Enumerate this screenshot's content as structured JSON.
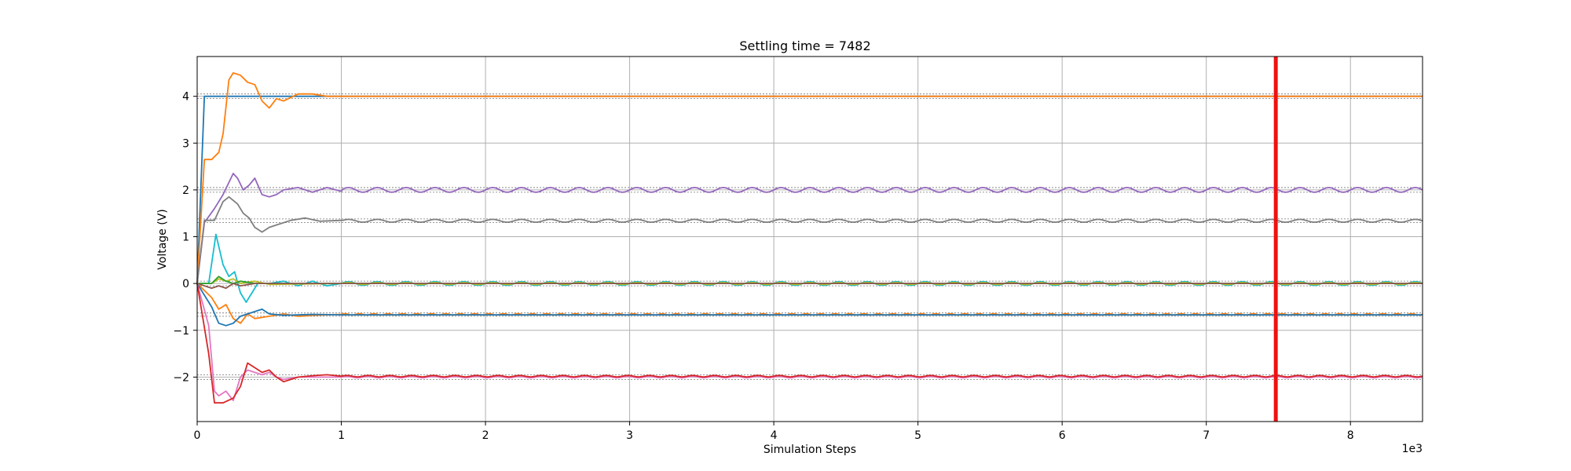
{
  "chart_data": {
    "type": "line",
    "title": "Settling time = 7482",
    "xlabel": "Simulation Steps",
    "ylabel": "Voltage (V)",
    "x_offset_label": "1e3",
    "xlim": [
      0,
      8.5
    ],
    "ylim": [
      -2.95,
      4.85
    ],
    "x_ticks": [
      0,
      1,
      2,
      3,
      4,
      5,
      6,
      7,
      8
    ],
    "y_ticks": [
      -2,
      -1,
      0,
      1,
      2,
      3,
      4
    ],
    "grid": true,
    "legend": "none",
    "settling_marker": {
      "x": 7.482,
      "color": "#ee1111"
    },
    "target_band_lines": [
      4.05,
      3.95,
      2.05,
      1.95,
      1.38,
      1.3,
      0.05,
      -0.05,
      -0.63,
      -0.7,
      -1.95,
      -2.05
    ],
    "series": [
      {
        "color": "#1f77b4",
        "points": [
          [
            0,
            0
          ],
          [
            0.05,
            4
          ],
          [
            1,
            4
          ],
          [
            8.5,
            4
          ]
        ]
      },
      {
        "color": "#ff7f0e",
        "points": [
          [
            0,
            0
          ],
          [
            0.05,
            2.65
          ],
          [
            0.1,
            2.65
          ],
          [
            0.15,
            2.8
          ],
          [
            0.18,
            3.2
          ],
          [
            0.22,
            4.35
          ],
          [
            0.25,
            4.5
          ],
          [
            0.3,
            4.45
          ],
          [
            0.35,
            4.3
          ],
          [
            0.4,
            4.25
          ],
          [
            0.45,
            3.9
          ],
          [
            0.5,
            3.75
          ],
          [
            0.55,
            3.95
          ],
          [
            0.6,
            3.9
          ],
          [
            0.7,
            4.05
          ],
          [
            0.8,
            4.05
          ],
          [
            0.9,
            4.0
          ],
          [
            1.0,
            4.0
          ],
          [
            8.5,
            4.0
          ]
        ]
      },
      {
        "color": "#9467bd",
        "points": [
          [
            0,
            0
          ],
          [
            0.05,
            1.3
          ],
          [
            0.12,
            1.6
          ],
          [
            0.18,
            1.9
          ],
          [
            0.25,
            2.35
          ],
          [
            0.28,
            2.25
          ],
          [
            0.32,
            2.0
          ],
          [
            0.36,
            2.1
          ],
          [
            0.4,
            2.25
          ],
          [
            0.45,
            1.9
          ],
          [
            0.5,
            1.85
          ],
          [
            0.55,
            1.9
          ],
          [
            0.6,
            2.0
          ],
          [
            0.7,
            2.05
          ],
          [
            0.8,
            1.95
          ],
          [
            0.9,
            2.05
          ],
          [
            1.0,
            1.97
          ]
        ],
        "osc": {
          "x0": 1.0,
          "x1": 8.5,
          "center": 2.0,
          "amp": 0.05,
          "period": 0.2
        }
      },
      {
        "color": "#7f7f7f",
        "points": [
          [
            0,
            0
          ],
          [
            0.05,
            1.35
          ],
          [
            0.12,
            1.35
          ],
          [
            0.18,
            1.75
          ],
          [
            0.22,
            1.85
          ],
          [
            0.28,
            1.7
          ],
          [
            0.32,
            1.5
          ],
          [
            0.36,
            1.4
          ],
          [
            0.4,
            1.2
          ],
          [
            0.45,
            1.1
          ],
          [
            0.5,
            1.2
          ],
          [
            0.55,
            1.25
          ],
          [
            0.65,
            1.35
          ],
          [
            0.75,
            1.4
          ],
          [
            0.85,
            1.33
          ],
          [
            1.0,
            1.35
          ]
        ],
        "osc": {
          "x0": 1.0,
          "x1": 8.5,
          "center": 1.34,
          "amp": 0.03,
          "period": 0.2
        }
      },
      {
        "color": "#17becf",
        "points": [
          [
            0,
            0
          ],
          [
            0.08,
            0.0
          ],
          [
            0.13,
            1.05
          ],
          [
            0.18,
            0.4
          ],
          [
            0.22,
            0.15
          ],
          [
            0.26,
            0.25
          ],
          [
            0.3,
            -0.2
          ],
          [
            0.34,
            -0.4
          ],
          [
            0.38,
            -0.2
          ],
          [
            0.42,
            0.0
          ],
          [
            0.5,
            0.0
          ],
          [
            0.6,
            0.05
          ],
          [
            0.7,
            -0.05
          ],
          [
            0.8,
            0.05
          ],
          [
            0.9,
            -0.05
          ],
          [
            1.0,
            0.0
          ]
        ],
        "osc": {
          "x0": 1.0,
          "x1": 8.5,
          "center": 0.0,
          "amp": 0.04,
          "period": 0.2
        }
      },
      {
        "color": "#bcbd22",
        "points": [
          [
            0,
            0
          ],
          [
            0.1,
            0.0
          ],
          [
            0.15,
            0.1
          ],
          [
            0.2,
            0.05
          ],
          [
            0.25,
            0.1
          ],
          [
            0.3,
            0.0
          ],
          [
            0.4,
            0.05
          ],
          [
            0.5,
            -0.02
          ],
          [
            1.0,
            0.0
          ]
        ],
        "osc": {
          "x0": 1.0,
          "x1": 8.5,
          "center": 0.0,
          "amp": 0.02,
          "period": 0.2
        }
      },
      {
        "color": "#2ca02c",
        "points": [
          [
            0,
            0
          ],
          [
            0.1,
            0.0
          ],
          [
            0.15,
            0.15
          ],
          [
            0.2,
            0.05
          ],
          [
            0.25,
            0.0
          ],
          [
            0.3,
            0.05
          ],
          [
            0.4,
            0.0
          ],
          [
            1.0,
            0.0
          ],
          [
            8.5,
            0.0
          ]
        ]
      },
      {
        "color": "#8c564b",
        "points": [
          [
            0,
            0
          ],
          [
            0.1,
            -0.1
          ],
          [
            0.15,
            -0.05
          ],
          [
            0.2,
            -0.1
          ],
          [
            0.25,
            0.0
          ],
          [
            0.3,
            -0.05
          ],
          [
            0.4,
            0.0
          ],
          [
            1.0,
            0.0
          ],
          [
            8.5,
            0.0
          ]
        ]
      },
      {
        "color": "#ff7f0e",
        "points": [
          [
            0,
            0
          ],
          [
            0.1,
            -0.3
          ],
          [
            0.15,
            -0.55
          ],
          [
            0.2,
            -0.45
          ],
          [
            0.25,
            -0.75
          ],
          [
            0.3,
            -0.85
          ],
          [
            0.35,
            -0.65
          ],
          [
            0.4,
            -0.75
          ],
          [
            0.5,
            -0.7
          ],
          [
            0.6,
            -0.65
          ],
          [
            0.7,
            -0.7
          ],
          [
            0.8,
            -0.68
          ],
          [
            1.0,
            -0.66
          ]
        ],
        "osc": {
          "x0": 1.0,
          "x1": 8.5,
          "center": -0.66,
          "amp": 0.015,
          "period": 0.1
        }
      },
      {
        "color": "#1f77b4",
        "points": [
          [
            0,
            0
          ],
          [
            0.1,
            -0.5
          ],
          [
            0.15,
            -0.85
          ],
          [
            0.2,
            -0.9
          ],
          [
            0.25,
            -0.85
          ],
          [
            0.3,
            -0.7
          ],
          [
            0.35,
            -0.65
          ],
          [
            0.4,
            -0.6
          ],
          [
            0.45,
            -0.55
          ],
          [
            0.5,
            -0.65
          ],
          [
            0.6,
            -0.68
          ],
          [
            0.8,
            -0.66
          ],
          [
            1.0,
            -0.67
          ],
          [
            8.5,
            -0.67
          ]
        ]
      },
      {
        "color": "#e377c2",
        "points": [
          [
            0,
            0
          ],
          [
            0.08,
            -0.9
          ],
          [
            0.12,
            -2.3
          ],
          [
            0.15,
            -2.4
          ],
          [
            0.2,
            -2.3
          ],
          [
            0.25,
            -2.5
          ],
          [
            0.3,
            -2.0
          ],
          [
            0.35,
            -1.85
          ],
          [
            0.4,
            -1.9
          ],
          [
            0.45,
            -1.95
          ],
          [
            0.5,
            -1.9
          ],
          [
            0.55,
            -2.0
          ],
          [
            0.6,
            -2.05
          ],
          [
            0.7,
            -2.0
          ],
          [
            0.8,
            -2.0
          ],
          [
            1.0,
            -2.0
          ]
        ],
        "osc": {
          "x0": 1.0,
          "x1": 8.5,
          "center": -2.0,
          "amp": 0.015,
          "period": 0.15
        }
      },
      {
        "color": "#d62728",
        "points": [
          [
            0,
            0
          ],
          [
            0.08,
            -1.5
          ],
          [
            0.12,
            -2.55
          ],
          [
            0.18,
            -2.55
          ],
          [
            0.25,
            -2.45
          ],
          [
            0.3,
            -2.2
          ],
          [
            0.35,
            -1.7
          ],
          [
            0.4,
            -1.8
          ],
          [
            0.45,
            -1.9
          ],
          [
            0.5,
            -1.85
          ],
          [
            0.55,
            -2.0
          ],
          [
            0.6,
            -2.1
          ],
          [
            0.7,
            -2.0
          ],
          [
            0.8,
            -1.97
          ],
          [
            0.9,
            -1.95
          ],
          [
            1.0,
            -1.98
          ]
        ],
        "osc": {
          "x0": 1.0,
          "x1": 8.5,
          "center": -1.98,
          "amp": 0.015,
          "period": 0.15
        }
      }
    ]
  }
}
